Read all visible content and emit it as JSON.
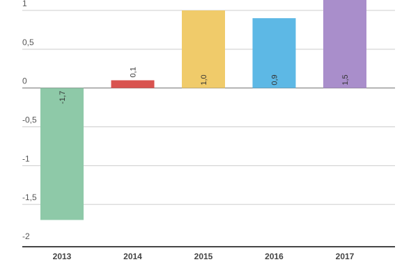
{
  "chart_data": {
    "type": "bar",
    "categories": [
      "2013",
      "2014",
      "2015",
      "2016",
      "2017"
    ],
    "values": [
      -1.7,
      0.1,
      1.0,
      0.9,
      1.5
    ],
    "value_labels": [
      "-1,7",
      "0,1",
      "1,0",
      "0,9",
      "1,5"
    ],
    "bar_colors": [
      "#8ec9a8",
      "#d9534f",
      "#f0cb6a",
      "#5db8e5",
      "#a98ecb"
    ],
    "ylim": [
      -2,
      1
    ],
    "yticks": [
      {
        "value": 1,
        "label": "1"
      },
      {
        "value": 0.5,
        "label": "0,5"
      },
      {
        "value": 0,
        "label": "0"
      },
      {
        "value": -0.5,
        "label": "-0,5"
      },
      {
        "value": -1,
        "label": "-1"
      },
      {
        "value": -1.5,
        "label": "-1,5"
      },
      {
        "value": -2,
        "label": "-2"
      }
    ],
    "grid": true,
    "legend": "none",
    "title": "",
    "xlabel": "",
    "ylabel": ""
  }
}
